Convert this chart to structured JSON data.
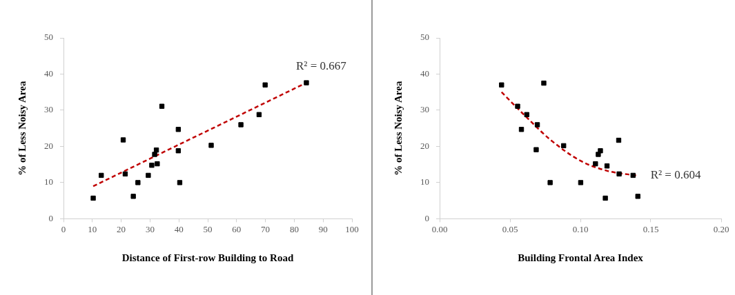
{
  "chart_data": [
    {
      "type": "scatter",
      "xlabel": "Distance of First-row Building to Road",
      "ylabel": "% of Less Noisy Area",
      "xlim": [
        0,
        100
      ],
      "xticks": [
        0,
        10,
        20,
        30,
        40,
        50,
        60,
        70,
        80,
        90,
        100
      ],
      "ylim": [
        0,
        50
      ],
      "yticks": [
        0,
        10,
        20,
        30,
        40,
        50
      ],
      "grid": false,
      "legend": false,
      "series": [
        {
          "type": "scatter",
          "marker": "square",
          "color": "#000000",
          "x": [
            10.3,
            13.1,
            20.7,
            21.4,
            24.2,
            25.8,
            29.4,
            30.6,
            31.6,
            32.2,
            32.5,
            34.1,
            39.8,
            39.8,
            40.3,
            51.2,
            61.5,
            67.8,
            69.9,
            84.2
          ],
          "values": [
            5.7,
            12.0,
            21.8,
            12.4,
            6.2,
            10.0,
            12.0,
            14.8,
            17.8,
            19.0,
            15.2,
            31.1,
            24.7,
            18.8,
            10.0,
            20.3,
            26.0,
            28.8,
            37.0,
            37.6
          ]
        },
        {
          "type": "line",
          "marker": "none",
          "line_style": "dashed",
          "color": "#c00000",
          "x": [
            10.3,
            84.2
          ],
          "values": [
            9.0,
            37.6
          ]
        }
      ],
      "annotations": [
        "R² = 0.667"
      ]
    },
    {
      "type": "scatter",
      "xlabel": "Building Frontal Area Index",
      "ylabel": "% of Less Noisy Area",
      "xlim": [
        0,
        0.2
      ],
      "xticks": [
        {
          "value": 0,
          "label": "0.00"
        },
        {
          "value": 0.05,
          "label": "0.05"
        },
        {
          "value": 0.1,
          "label": "0.10"
        },
        {
          "value": 0.15,
          "label": "0.15"
        },
        {
          "value": 0.2,
          "label": "0.20"
        }
      ],
      "ylim": [
        0,
        50
      ],
      "yticks": [
        0,
        10,
        20,
        30,
        40,
        50
      ],
      "grid": false,
      "legend": false,
      "series": [
        {
          "type": "scatter",
          "marker": "square",
          "color": "#000000",
          "x": [
            0.044,
            0.0554,
            0.0581,
            0.0619,
            0.0686,
            0.0694,
            0.074,
            0.0785,
            0.0881,
            0.1002,
            0.1107,
            0.1127,
            0.1142,
            0.1177,
            0.1189,
            0.1272,
            0.1275,
            0.1374,
            0.1408
          ],
          "values": [
            37.0,
            31.1,
            24.7,
            28.8,
            19.1,
            26.0,
            37.5,
            10.0,
            20.2,
            10.0,
            15.2,
            17.8,
            18.8,
            5.7,
            14.6,
            21.7,
            12.4,
            12.0,
            6.2
          ]
        },
        {
          "type": "line",
          "marker": "none",
          "line_style": "dashed",
          "color": "#c00000",
          "x": [
            0.044,
            0.0619,
            0.0788,
            0.1002,
            0.1186,
            0.141
          ],
          "values": [
            35.0,
            28.0,
            21.8,
            16.0,
            13.3,
            11.9
          ]
        }
      ],
      "annotations": [
        "R² = 0.604"
      ]
    }
  ]
}
